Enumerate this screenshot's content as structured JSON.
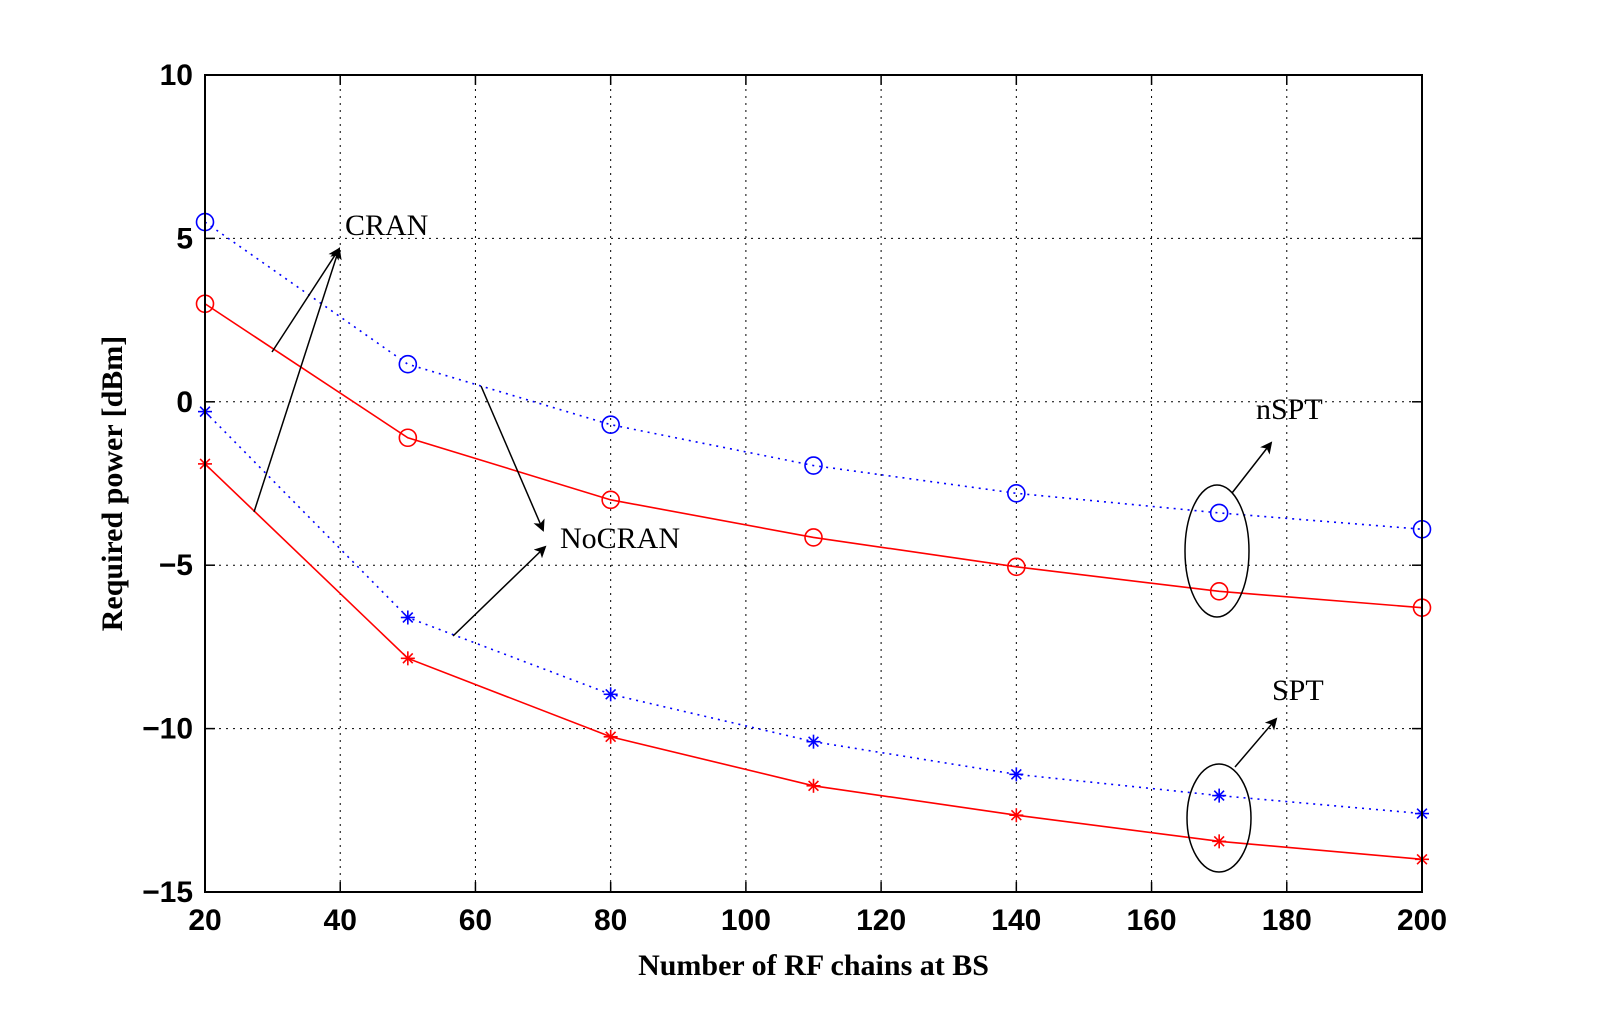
{
  "chart_data": {
    "type": "line",
    "title": "",
    "xlabel": "Number of RF chains at BS",
    "ylabel": "Required power [dBm]",
    "xlim": [
      20,
      200
    ],
    "ylim": [
      -15,
      10
    ],
    "xticks": [
      20,
      40,
      60,
      80,
      100,
      120,
      140,
      160,
      180,
      200
    ],
    "yticks": [
      -15,
      -10,
      -5,
      0,
      5,
      10
    ],
    "ytick_labels": [
      "−15",
      "−10",
      "−5",
      "0",
      "5",
      "10"
    ],
    "grid": true,
    "x": [
      20,
      50,
      80,
      110,
      140,
      170,
      200
    ],
    "series": [
      {
        "name": "NoCRAN nSPT",
        "color": "#0000ff",
        "line": "dotted",
        "marker": "circle",
        "values": [
          5.5,
          1.15,
          -0.7,
          -1.95,
          -2.8,
          -3.4,
          -3.9
        ]
      },
      {
        "name": "CRAN nSPT",
        "color": "#ff0000",
        "line": "solid",
        "marker": "circle",
        "values": [
          3.0,
          -1.1,
          -3.0,
          -4.15,
          -5.05,
          -5.8,
          -6.3
        ]
      },
      {
        "name": "NoCRAN SPT",
        "color": "#0000ff",
        "line": "dotted",
        "marker": "star",
        "values": [
          -0.3,
          -6.6,
          -8.95,
          -10.4,
          -11.4,
          -12.05,
          -12.6
        ]
      },
      {
        "name": "CRAN SPT",
        "color": "#ff0000",
        "line": "solid",
        "marker": "star",
        "values": [
          -1.9,
          -7.85,
          -10.25,
          -11.75,
          -12.65,
          -13.45,
          -14.0
        ]
      }
    ],
    "annotations": {
      "cran": "CRAN",
      "nocran": "NoCRAN",
      "nspt": "nSPT",
      "spt": "SPT"
    }
  }
}
